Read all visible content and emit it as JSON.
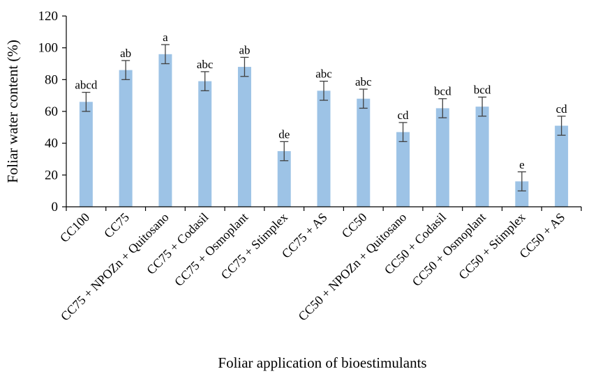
{
  "chart_data": {
    "type": "bar",
    "title": "",
    "xlabel": "Foliar application of bioestimulants",
    "ylabel": "Foliar water content (%)",
    "ylim": [
      0,
      120
    ],
    "yticks": [
      0,
      20,
      40,
      60,
      80,
      100,
      120
    ],
    "grid": false,
    "bar_color": "#9dc3e6",
    "categories": [
      "CC100",
      "CC75",
      "CC75 + NPOZn + Quitosano",
      "CC75 + Codasil",
      "CC75 + Osmoplant",
      "CC75 + Stimplex",
      "CC75 + AS",
      "CC50",
      "CC50 + NPOZn + Quitosano",
      "CC50 + Codasil",
      "CC50 + Osmoplant",
      "CC50 + Stimplex",
      "CC50 + AS"
    ],
    "values": [
      66,
      86,
      96,
      79,
      88,
      35,
      73,
      68,
      47,
      62,
      63,
      16,
      51
    ],
    "errors": [
      6,
      6,
      6,
      6,
      6,
      6,
      6,
      6,
      6,
      6,
      6,
      6,
      6
    ],
    "significance_letters": [
      "abcd",
      "ab",
      "a",
      "abc",
      "ab",
      "de",
      "abc",
      "abc",
      "cd",
      "bcd",
      "bcd",
      "e",
      "cd"
    ]
  }
}
